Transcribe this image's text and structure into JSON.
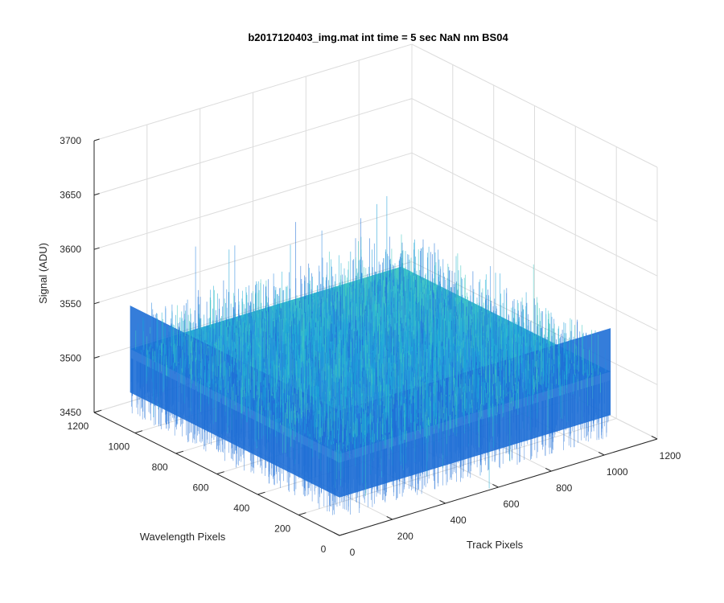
{
  "chart_data": {
    "type": "surface",
    "title": "b2017120403_img.mat int time = 5 sec  NaN nm BS04",
    "xlabel": "Track Pixels",
    "ylabel": "Wavelength Pixels",
    "zlabel": "Signal (ADU)",
    "xlim": [
      0,
      1200
    ],
    "ylim": [
      0,
      1200
    ],
    "zlim": [
      3450,
      3700
    ],
    "x_ticks": [
      "0",
      "200",
      "400",
      "600",
      "800",
      "1000",
      "1200"
    ],
    "y_ticks": [
      "0",
      "200",
      "400",
      "600",
      "800",
      "1000",
      "1200"
    ],
    "z_ticks": [
      "3450",
      "3500",
      "3550",
      "3600",
      "3650",
      "3700"
    ],
    "surface": {
      "x_extent": [
        0,
        1024
      ],
      "y_extent": [
        0,
        1024
      ],
      "mean_signal": 3525,
      "noise_range": [
        3490,
        3570
      ]
    },
    "grid": true,
    "colors": {
      "surface_low": "#1f6fd6",
      "surface_mid": "#1aa0d8",
      "surface_high": "#3fc7c0",
      "grid": "#dcdcdc",
      "axis": "#262626"
    }
  }
}
